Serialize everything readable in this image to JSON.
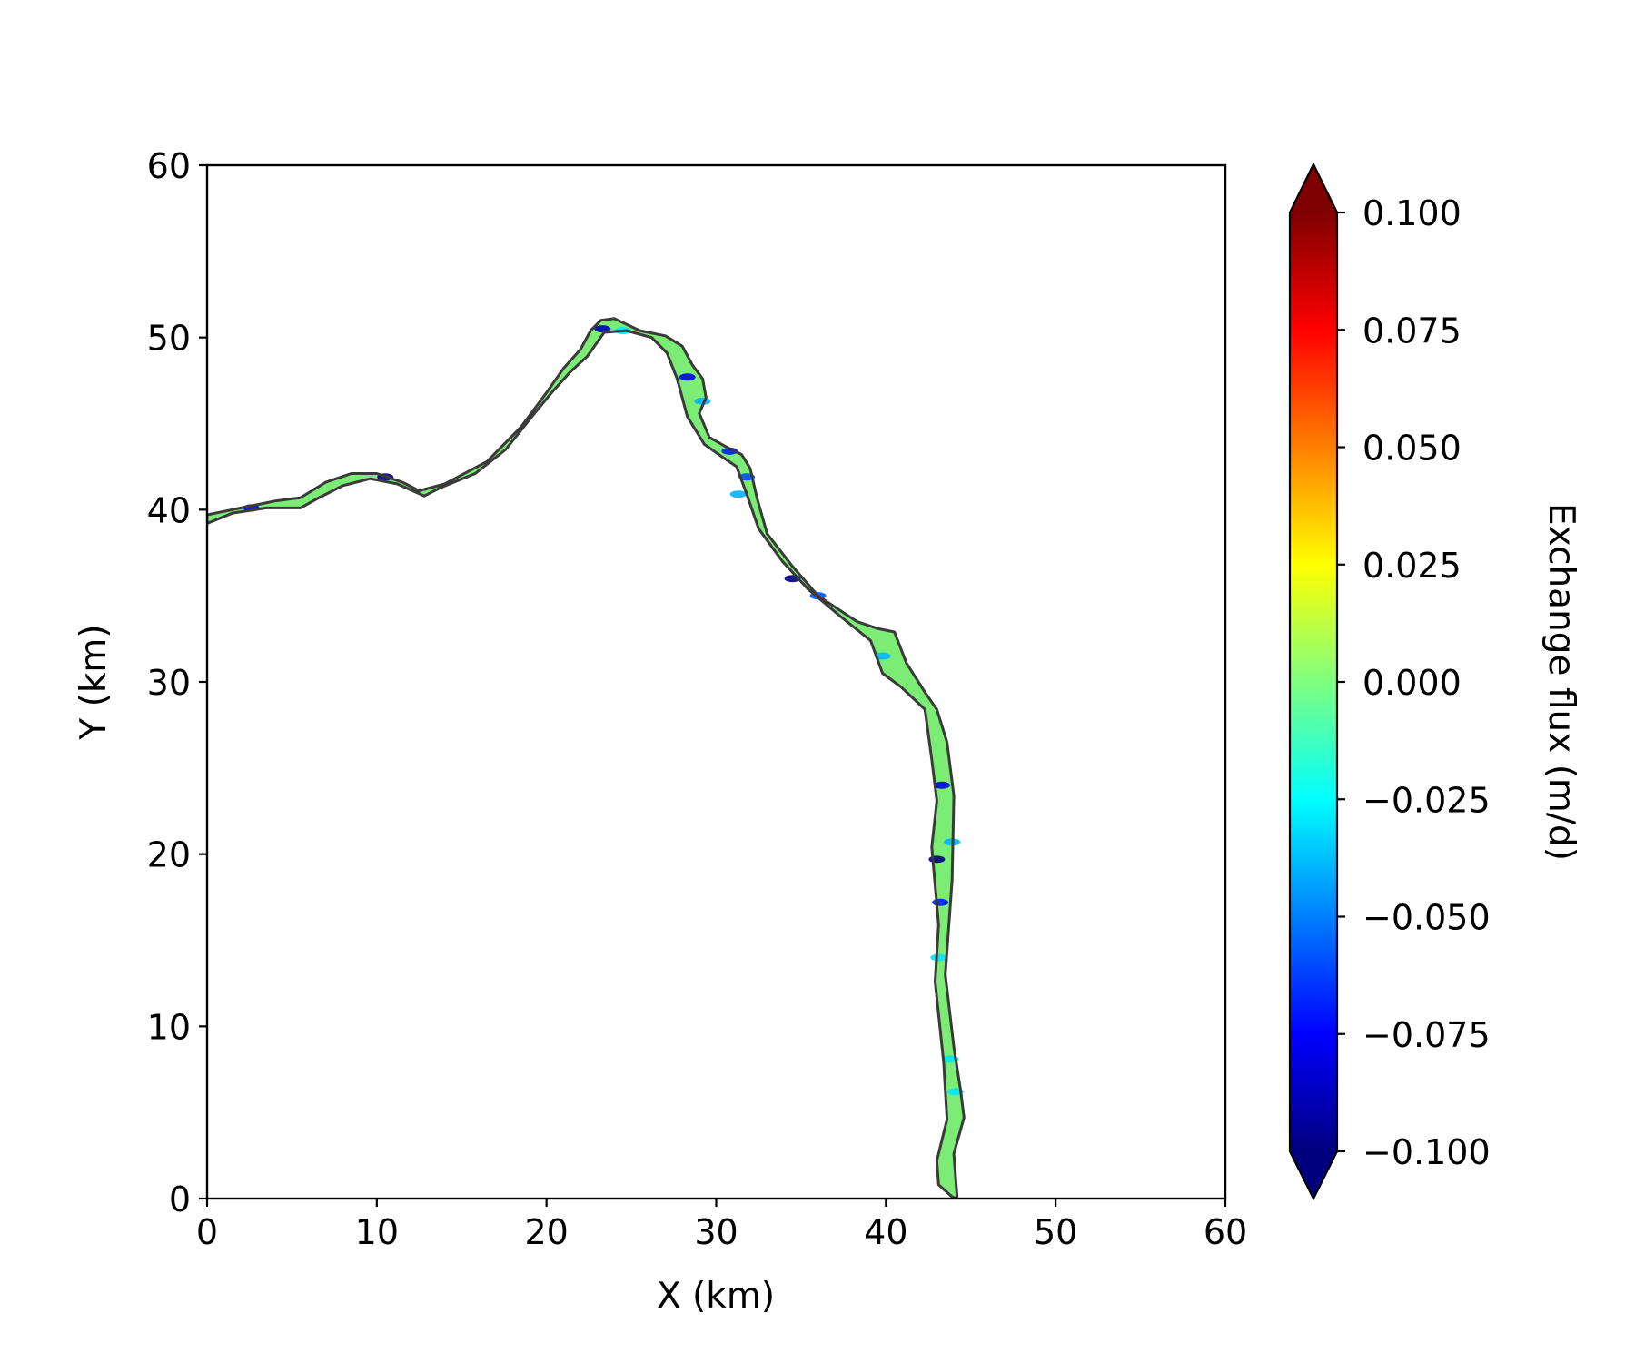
{
  "chart_data": {
    "type": "heatmap",
    "title": "",
    "xlabel": "X (km)",
    "ylabel": "Y (km)",
    "xlim": [
      0,
      60
    ],
    "ylim": [
      0,
      60
    ],
    "x_ticks": [
      0,
      10,
      20,
      30,
      40,
      50,
      60
    ],
    "y_ticks": [
      0,
      10,
      20,
      30,
      40,
      50,
      60
    ],
    "x_tick_labels": [
      "0",
      "10",
      "20",
      "30",
      "40",
      "50",
      "60"
    ],
    "y_tick_labels": [
      "0",
      "10",
      "20",
      "30",
      "40",
      "50",
      "60"
    ],
    "grid": false,
    "colorbar": {
      "label": "Exchange flux (m/d)",
      "colormap": "jet",
      "range": [
        -0.1,
        0.1
      ],
      "extend": "both",
      "ticks": [
        0.1,
        0.075,
        0.05,
        0.025,
        0.0,
        -0.025,
        -0.05,
        -0.075,
        -0.1
      ],
      "tick_labels": [
        "0.100",
        "0.075",
        "0.050",
        "0.025",
        "0.000",
        "−0.025",
        "−0.050",
        "−0.075",
        "−0.100"
      ],
      "colors": [
        "#00007f",
        "#0000ff",
        "#007fff",
        "#00ffff",
        "#7fff7f",
        "#ffff00",
        "#ff7f00",
        "#ff0000",
        "#7f0000"
      ]
    },
    "river": {
      "description_free": true,
      "outline_color": "#3a3a3a",
      "base_color": "#7ced74",
      "left_bank": [
        [
          0,
          39.7
        ],
        [
          2,
          40.1
        ],
        [
          4,
          40.5
        ],
        [
          5.5,
          40.7
        ],
        [
          7,
          41.6
        ],
        [
          8.5,
          42.1
        ],
        [
          10,
          42.1
        ],
        [
          11.5,
          41.6
        ],
        [
          12.5,
          41.1
        ],
        [
          14,
          41.5
        ],
        [
          16.5,
          42.8
        ],
        [
          18.5,
          44.8
        ],
        [
          20,
          46.8
        ],
        [
          21,
          48.2
        ],
        [
          22,
          49.3
        ],
        [
          22.6,
          50.4
        ],
        [
          23.2,
          51.0
        ],
        [
          24,
          51.1
        ],
        [
          25.5,
          50.4
        ],
        [
          27,
          50.1
        ],
        [
          28,
          49.5
        ],
        [
          28.6,
          48.4
        ],
        [
          29.2,
          47.6
        ],
        [
          29.4,
          46.5
        ],
        [
          29.0,
          45.6
        ],
        [
          29.6,
          44.2
        ],
        [
          30.5,
          43.7
        ],
        [
          31.5,
          43.2
        ],
        [
          32,
          42.4
        ],
        [
          32.4,
          40.7
        ],
        [
          33,
          38.6
        ],
        [
          34.5,
          36.7
        ],
        [
          36,
          35.0
        ],
        [
          38.3,
          33.5
        ],
        [
          39.5,
          33.1
        ],
        [
          40.5,
          32.9
        ],
        [
          41.2,
          31.1
        ],
        [
          42.3,
          29.4
        ],
        [
          43.0,
          28.4
        ],
        [
          43.6,
          26.5
        ],
        [
          44.0,
          23.4
        ],
        [
          43.9,
          18.5
        ],
        [
          43.5,
          13.0
        ],
        [
          44.0,
          8.8
        ],
        [
          44.4,
          6.3
        ],
        [
          44.6,
          4.7
        ],
        [
          44.0,
          2.6
        ],
        [
          44.2,
          0.0
        ]
      ],
      "right_bank": [
        [
          43.9,
          0.1
        ],
        [
          43.1,
          0.8
        ],
        [
          43.0,
          2.2
        ],
        [
          43.6,
          4.6
        ],
        [
          43.4,
          7.9
        ],
        [
          42.9,
          12.6
        ],
        [
          43.1,
          15.9
        ],
        [
          42.7,
          20.4
        ],
        [
          43.0,
          23.1
        ],
        [
          42.7,
          25.5
        ],
        [
          42.3,
          28.4
        ],
        [
          40.9,
          29.7
        ],
        [
          39.8,
          30.5
        ],
        [
          39.1,
          32.4
        ],
        [
          37.2,
          33.9
        ],
        [
          35.4,
          35.4
        ],
        [
          33.9,
          37.0
        ],
        [
          32.5,
          38.9
        ],
        [
          31.8,
          40.9
        ],
        [
          31.2,
          42.5
        ],
        [
          30.3,
          43.1
        ],
        [
          29.3,
          43.8
        ],
        [
          28.3,
          45.4
        ],
        [
          27.7,
          47.6
        ],
        [
          27.1,
          49.1
        ],
        [
          26.2,
          50.0
        ],
        [
          24.7,
          50.4
        ],
        [
          23.4,
          50.3
        ],
        [
          22.4,
          48.9
        ],
        [
          21.4,
          48.0
        ],
        [
          20.3,
          46.8
        ],
        [
          19.3,
          45.6
        ],
        [
          17.6,
          43.5
        ],
        [
          15.8,
          42.1
        ],
        [
          13.8,
          41.3
        ],
        [
          12.8,
          40.8
        ],
        [
          11.2,
          41.5
        ],
        [
          9.6,
          41.8
        ],
        [
          8.0,
          41.4
        ],
        [
          6.6,
          40.7
        ],
        [
          5.5,
          40.1
        ],
        [
          3.5,
          40.1
        ],
        [
          1.5,
          39.8
        ],
        [
          0,
          39.2
        ]
      ],
      "low_flux_patches": [
        {
          "x": 2.6,
          "y": 40.1,
          "value": -0.08
        },
        {
          "x": 10.5,
          "y": 41.9,
          "value": -0.1
        },
        {
          "x": 23.3,
          "y": 50.5,
          "value": -0.09
        },
        {
          "x": 24.5,
          "y": 50.4,
          "value": -0.03
        },
        {
          "x": 28.3,
          "y": 47.7,
          "value": -0.08
        },
        {
          "x": 29.2,
          "y": 46.3,
          "value": -0.04
        },
        {
          "x": 30.8,
          "y": 43.4,
          "value": -0.07
        },
        {
          "x": 31.8,
          "y": 41.9,
          "value": -0.06
        },
        {
          "x": 31.3,
          "y": 40.9,
          "value": -0.04
        },
        {
          "x": 34.5,
          "y": 36.0,
          "value": -0.1
        },
        {
          "x": 36.0,
          "y": 35.0,
          "value": -0.06
        },
        {
          "x": 39.8,
          "y": 31.5,
          "value": -0.04
        },
        {
          "x": 43.3,
          "y": 24.0,
          "value": -0.08
        },
        {
          "x": 43.0,
          "y": 19.7,
          "value": -0.1
        },
        {
          "x": 43.2,
          "y": 17.2,
          "value": -0.07
        },
        {
          "x": 43.9,
          "y": 20.7,
          "value": -0.04
        },
        {
          "x": 43.1,
          "y": 14.0,
          "value": -0.03
        },
        {
          "x": 43.8,
          "y": 8.1,
          "value": -0.03
        },
        {
          "x": 44.1,
          "y": 6.2,
          "value": -0.03
        }
      ]
    }
  }
}
